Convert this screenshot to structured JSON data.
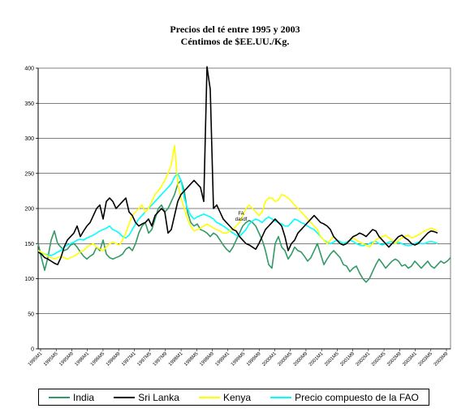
{
  "chart_data": {
    "type": "line",
    "title": "Precios del té entre 1995 y 2003",
    "subtitle": "Céntimos de $EE.UU./Kg.",
    "xlabel": "",
    "ylabel": "",
    "ylim": [
      0,
      400
    ],
    "yticks": [
      0,
      50,
      100,
      150,
      200,
      250,
      300,
      350,
      400
    ],
    "grid": true,
    "legend_position": "bottom",
    "xtick_labels": [
      "1995M1",
      "1995M5",
      "1995M9",
      "1996M1",
      "1996M5",
      "1996M9",
      "1997M1",
      "1997M5",
      "1997M9",
      "1998M1",
      "1998M5",
      "1998M9",
      "1999M1",
      "1999M5",
      "1999M9",
      "2000M1",
      "2000M5",
      "2000M9",
      "2001M1",
      "2001M5",
      "2001M9",
      "2002M1",
      "2002M5",
      "2002M9",
      "2003M1",
      "2003M5",
      "2003M9"
    ],
    "annotation": "FA\ndasdf",
    "series": [
      {
        "name": "India",
        "color": "#339966",
        "values": [
          150,
          130,
          112,
          130,
          155,
          168,
          150,
          145,
          140,
          142,
          148,
          150,
          145,
          138,
          132,
          128,
          132,
          135,
          145,
          140,
          155,
          135,
          130,
          128,
          130,
          132,
          135,
          142,
          145,
          140,
          150,
          165,
          175,
          180,
          165,
          170,
          185,
          200,
          205,
          195,
          200,
          210,
          220,
          235,
          240,
          225,
          195,
          180,
          175,
          178,
          170,
          168,
          165,
          160,
          165,
          162,
          155,
          148,
          142,
          138,
          145,
          155,
          165,
          175,
          180,
          183,
          180,
          175,
          165,
          155,
          140,
          120,
          115,
          150,
          160,
          145,
          140,
          128,
          135,
          145,
          140,
          138,
          132,
          125,
          130,
          140,
          150,
          135,
          120,
          128,
          135,
          140,
          135,
          130,
          120,
          118,
          110,
          115,
          118,
          108,
          100,
          95,
          100,
          110,
          120,
          128,
          122,
          115,
          120,
          125,
          128,
          125,
          118,
          120,
          115,
          118,
          125,
          120,
          115,
          120,
          125,
          118,
          115,
          120,
          125,
          122,
          125,
          130
        ]
      },
      {
        "name": "Sri Lanka",
        "color": "#000000",
        "values": [
          138,
          135,
          130,
          128,
          125,
          122,
          120,
          130,
          145,
          155,
          160,
          165,
          175,
          160,
          168,
          175,
          180,
          190,
          200,
          205,
          185,
          210,
          215,
          210,
          200,
          205,
          210,
          215,
          195,
          190,
          180,
          175,
          178,
          180,
          185,
          175,
          190,
          195,
          200,
          195,
          165,
          170,
          190,
          210,
          220,
          225,
          230,
          235,
          240,
          235,
          230,
          210,
          402,
          370,
          200,
          205,
          195,
          185,
          180,
          175,
          170,
          168,
          160,
          155,
          150,
          148,
          145,
          142,
          150,
          160,
          170,
          175,
          180,
          185,
          180,
          175,
          160,
          140,
          150,
          155,
          165,
          170,
          175,
          180,
          185,
          190,
          185,
          180,
          178,
          175,
          170,
          160,
          155,
          150,
          148,
          150,
          155,
          160,
          162,
          165,
          163,
          160,
          165,
          170,
          168,
          160,
          155,
          150,
          145,
          150,
          155,
          160,
          162,
          158,
          155,
          150,
          148,
          150,
          155,
          160,
          165,
          168,
          167,
          165
        ]
      },
      {
        "name": "Kenya",
        "color": "#ffff00",
        "values": [
          140,
          138,
          135,
          132,
          130,
          128,
          130,
          132,
          130,
          128,
          130,
          132,
          135,
          138,
          140,
          145,
          148,
          150,
          145,
          142,
          140,
          145,
          150,
          152,
          150,
          148,
          155,
          165,
          178,
          190,
          195,
          200,
          205,
          195,
          200,
          210,
          220,
          225,
          232,
          240,
          250,
          262,
          290,
          235,
          215,
          200,
          185,
          175,
          168,
          170,
          172,
          175,
          178,
          175,
          172,
          170,
          168,
          165,
          165,
          168,
          170,
          175,
          180,
          190,
          200,
          205,
          200,
          195,
          190,
          195,
          210,
          215,
          215,
          210,
          212,
          220,
          218,
          215,
          210,
          205,
          200,
          195,
          190,
          185,
          180,
          175,
          170,
          160,
          155,
          150,
          155,
          160,
          155,
          150,
          148,
          150,
          155,
          158,
          155,
          152,
          150,
          148,
          145,
          150,
          155,
          158,
          160,
          162,
          158,
          155,
          150,
          155,
          158,
          160,
          162,
          158,
          160,
          162,
          165,
          168,
          170,
          172,
          170,
          168
        ]
      },
      {
        "name": "Precio compuesto de la FAO",
        "color": "#00ffff",
        "values": [
          138,
          136,
          135,
          134,
          133,
          135,
          138,
          140,
          145,
          148,
          150,
          152,
          155,
          156,
          155,
          158,
          160,
          162,
          165,
          168,
          170,
          172,
          175,
          170,
          168,
          165,
          160,
          158,
          162,
          170,
          178,
          185,
          190,
          195,
          200,
          205,
          210,
          215,
          220,
          225,
          230,
          235,
          245,
          250,
          240,
          215,
          200,
          190,
          185,
          188,
          190,
          192,
          190,
          188,
          185,
          180,
          178,
          175,
          172,
          168,
          165,
          162,
          160,
          165,
          170,
          178,
          182,
          185,
          183,
          180,
          185,
          188,
          185,
          182,
          180,
          178,
          175,
          175,
          180,
          185,
          183,
          180,
          178,
          175,
          172,
          170,
          165,
          160,
          155,
          152,
          150,
          152,
          155,
          153,
          150,
          152,
          155,
          153,
          150,
          148,
          147,
          148,
          150,
          152,
          153,
          150,
          148,
          150,
          152,
          153,
          150,
          152,
          150,
          148,
          147,
          148,
          150,
          152,
          150,
          150,
          152,
          153,
          152,
          150
        ]
      }
    ]
  }
}
